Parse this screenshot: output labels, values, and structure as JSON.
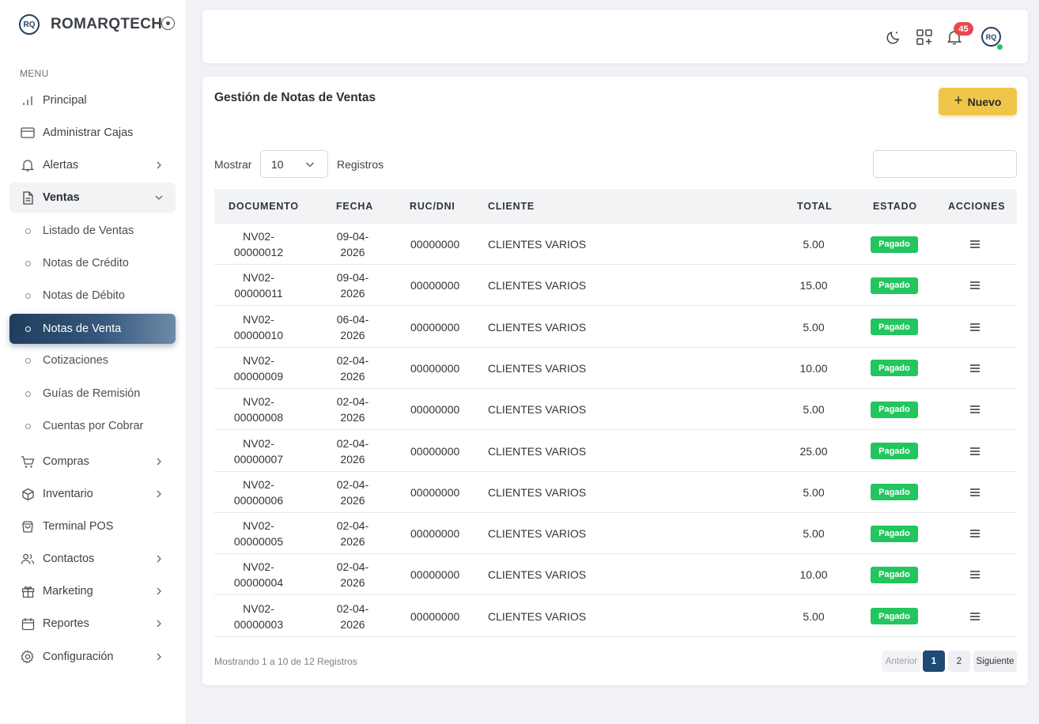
{
  "brand": {
    "name": "ROMARQTECH",
    "logo_text": "RQ"
  },
  "sidebar": {
    "heading": "MENU",
    "items": [
      {
        "label": "Principal",
        "icon": "bar-chart-icon"
      },
      {
        "label": "Administrar Cajas",
        "icon": "credit-card-icon"
      },
      {
        "label": "Alertas",
        "icon": "bell-icon"
      },
      {
        "label": "Ventas",
        "icon": "document-icon"
      },
      {
        "label": "Compras",
        "icon": "cart-icon"
      },
      {
        "label": "Inventario",
        "icon": "box-icon"
      },
      {
        "label": "Terminal POS",
        "icon": "shopping-bag-icon"
      },
      {
        "label": "Contactos",
        "icon": "users-icon"
      },
      {
        "label": "Marketing",
        "icon": "gift-icon"
      },
      {
        "label": "Reportes",
        "icon": "calendar-icon"
      },
      {
        "label": "Configuración",
        "icon": "gear-icon"
      }
    ],
    "ventas_sub": [
      {
        "label": "Listado de Ventas"
      },
      {
        "label": "Notas de Crédito"
      },
      {
        "label": "Notas de Débito"
      },
      {
        "label": "Notas de Venta"
      },
      {
        "label": "Cotizaciones"
      },
      {
        "label": "Guías de Remisión"
      },
      {
        "label": "Cuentas por Cobrar"
      }
    ]
  },
  "topbar": {
    "notifications_count": "45",
    "avatar_text": "RQ"
  },
  "page": {
    "title": "Gestión de Notas de Ventas",
    "new_button": "Nuevo",
    "show_label": "Mostrar",
    "page_size": "10",
    "show_suffix": "Registros",
    "search_value": ""
  },
  "table": {
    "columns": [
      "DOCUMENTO",
      "FECHA",
      "RUC/DNI",
      "CLIENTE",
      "TOTAL",
      "ESTADO",
      "ACCIONES"
    ],
    "rows": [
      {
        "doc1": "NV02-",
        "doc2": "00000012",
        "date1": "09-04-",
        "date2": "2026",
        "ruc": "00000000",
        "client": "CLIENTES VARIOS",
        "total": "5.00",
        "status": "Pagado"
      },
      {
        "doc1": "NV02-",
        "doc2": "00000011",
        "date1": "09-04-",
        "date2": "2026",
        "ruc": "00000000",
        "client": "CLIENTES VARIOS",
        "total": "15.00",
        "status": "Pagado"
      },
      {
        "doc1": "NV02-",
        "doc2": "00000010",
        "date1": "06-04-",
        "date2": "2026",
        "ruc": "00000000",
        "client": "CLIENTES VARIOS",
        "total": "5.00",
        "status": "Pagado"
      },
      {
        "doc1": "NV02-",
        "doc2": "00000009",
        "date1": "02-04-",
        "date2": "2026",
        "ruc": "00000000",
        "client": "CLIENTES VARIOS",
        "total": "10.00",
        "status": "Pagado"
      },
      {
        "doc1": "NV02-",
        "doc2": "00000008",
        "date1": "02-04-",
        "date2": "2026",
        "ruc": "00000000",
        "client": "CLIENTES VARIOS",
        "total": "5.00",
        "status": "Pagado"
      },
      {
        "doc1": "NV02-",
        "doc2": "00000007",
        "date1": "02-04-",
        "date2": "2026",
        "ruc": "00000000",
        "client": "CLIENTES VARIOS",
        "total": "25.00",
        "status": "Pagado"
      },
      {
        "doc1": "NV02-",
        "doc2": "00000006",
        "date1": "02-04-",
        "date2": "2026",
        "ruc": "00000000",
        "client": "CLIENTES VARIOS",
        "total": "5.00",
        "status": "Pagado"
      },
      {
        "doc1": "NV02-",
        "doc2": "00000005",
        "date1": "02-04-",
        "date2": "2026",
        "ruc": "00000000",
        "client": "CLIENTES VARIOS",
        "total": "5.00",
        "status": "Pagado"
      },
      {
        "doc1": "NV02-",
        "doc2": "00000004",
        "date1": "02-04-",
        "date2": "2026",
        "ruc": "00000000",
        "client": "CLIENTES VARIOS",
        "total": "10.00",
        "status": "Pagado"
      },
      {
        "doc1": "NV02-",
        "doc2": "00000003",
        "date1": "02-04-",
        "date2": "2026",
        "ruc": "00000000",
        "client": "CLIENTES VARIOS",
        "total": "5.00",
        "status": "Pagado"
      }
    ]
  },
  "footer": {
    "info": "Mostrando 1 a 10 de 12 Registros",
    "prev": "Anterior",
    "pages": [
      "1",
      "2"
    ],
    "next": "Siguiente"
  },
  "colors": {
    "accent": "#f0c64a",
    "active_nav": "#1f3d5e",
    "status_paid": "#22c55e",
    "badge": "#e5484d"
  }
}
